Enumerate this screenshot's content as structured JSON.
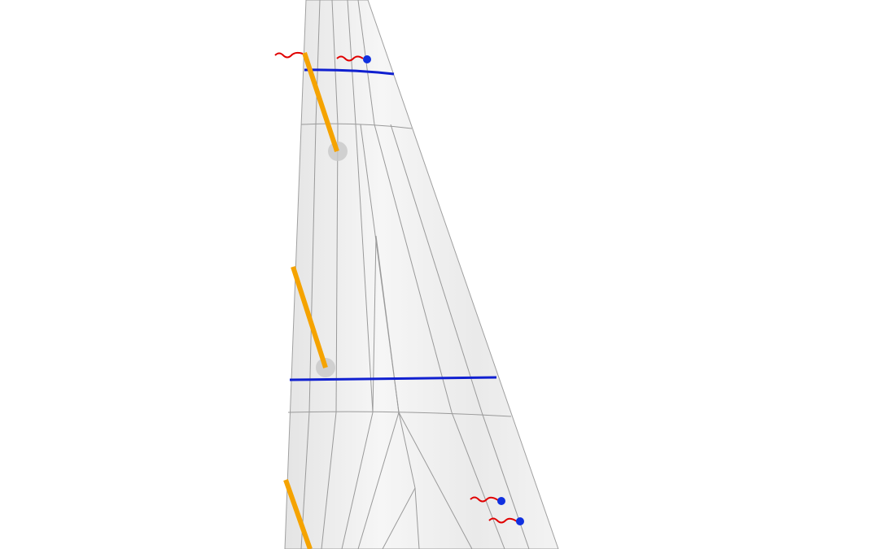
{
  "colors": {
    "background": "#ffffff",
    "sail": "#ededed",
    "seam": "#9a9a9a",
    "draft_stripe": "#1020d0",
    "batten": "#f5a300",
    "telltale": "#e00000",
    "telltale_dot": "#1030e0",
    "batten_pocket": "#c8c8c8"
  }
}
